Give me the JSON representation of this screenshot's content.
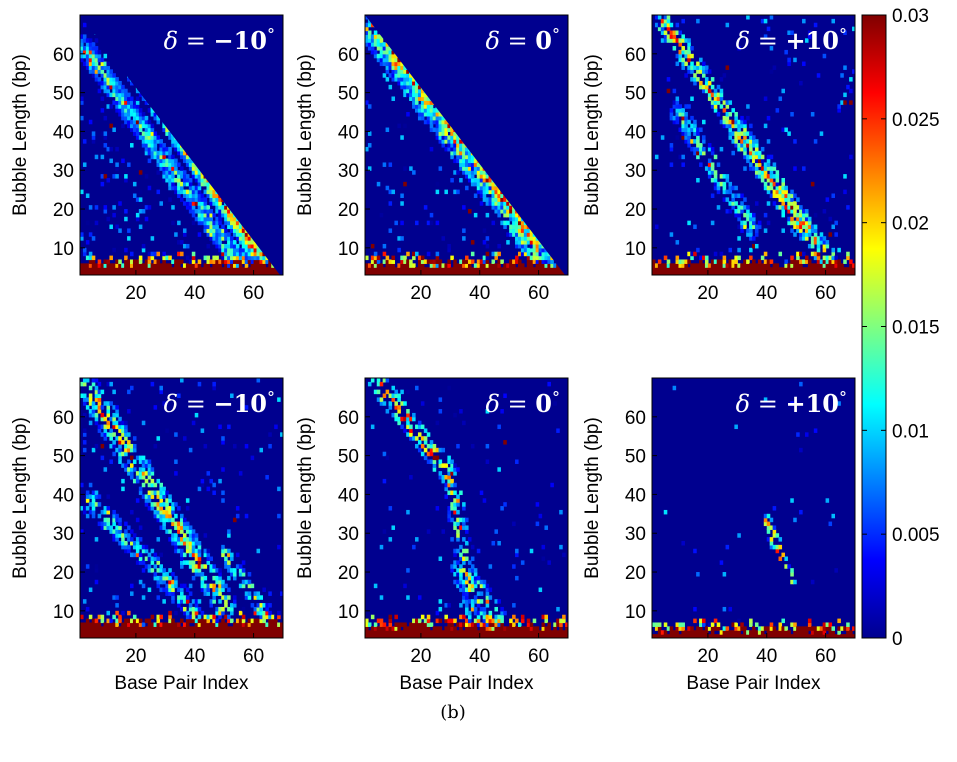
{
  "caption": "(b)",
  "colors": {
    "background": "#00008f",
    "max": "#800000"
  },
  "colorbar": {
    "ticks": [
      "0.03",
      "0.025",
      "0.02",
      "0.015",
      "0.01",
      "0.005",
      "0"
    ],
    "values": [
      0.03,
      0.025,
      0.02,
      0.015,
      0.01,
      0.005,
      0
    ],
    "range": [
      0,
      0.03
    ],
    "colormap": "jet"
  },
  "chart_data": [
    {
      "type": "heatmap",
      "row": 0,
      "col": 0,
      "title": {
        "prefix": "δ = ",
        "value": "−10",
        "degree": "°"
      },
      "ylabel": "Bubble Length (bp)",
      "xlabel": "",
      "xticks": [
        "20",
        "40",
        "60"
      ],
      "yticks": [
        "10",
        "20",
        "30",
        "40",
        "50",
        "60"
      ],
      "xlim": [
        1,
        70
      ],
      "ylim": [
        3,
        70
      ],
      "pattern": {
        "mask": "triangle",
        "bottom_band": 6,
        "bands": [
          {
            "x0": 2,
            "y0": 62,
            "x1": 55,
            "y1": 6,
            "w": 3,
            "v": 0.012
          },
          {
            "x0": 20,
            "y0": 55,
            "x1": 60,
            "y1": 10,
            "w": 3,
            "v": 0.015
          },
          {
            "x0": 35,
            "y0": 40,
            "x1": 62,
            "y1": 8,
            "w": 3,
            "v": 0.02
          }
        ],
        "noise": 0.55,
        "hot": 0.06
      }
    },
    {
      "type": "heatmap",
      "row": 0,
      "col": 1,
      "title": {
        "prefix": "δ = ",
        "value": "0",
        "degree": "°"
      },
      "ylabel": "Bubble Length (bp)",
      "xlabel": "",
      "xticks": [
        "20",
        "40",
        "60"
      ],
      "yticks": [
        "10",
        "20",
        "30",
        "40",
        "50",
        "60"
      ],
      "xlim": [
        1,
        70
      ],
      "ylim": [
        3,
        70
      ],
      "pattern": {
        "mask": "triangle",
        "bottom_band": 6,
        "bands": [
          {
            "x0": 3,
            "y0": 68,
            "x1": 60,
            "y1": 10,
            "w": 5,
            "v": 0.016
          },
          {
            "x0": 10,
            "y0": 60,
            "x1": 68,
            "y1": 6,
            "w": 4,
            "v": 0.012
          },
          {
            "x0": 30,
            "y0": 45,
            "x1": 55,
            "y1": 15,
            "w": 3,
            "v": 0.02
          }
        ],
        "noise": 0.4,
        "hot": 0.05
      }
    },
    {
      "type": "heatmap",
      "row": 0,
      "col": 2,
      "title": {
        "prefix": "δ = ",
        "value": "+10",
        "degree": "°"
      },
      "ylabel": "Bubble Length (bp)",
      "xlabel": "",
      "xticks": [
        "20",
        "40",
        "60"
      ],
      "yticks": [
        "10",
        "20",
        "30",
        "40",
        "50",
        "60"
      ],
      "xlim": [
        1,
        70
      ],
      "ylim": [
        3,
        70
      ],
      "pattern": {
        "mask": "none",
        "bottom_band": 6,
        "bands": [
          {
            "x0": 5,
            "y0": 68,
            "x1": 60,
            "y1": 8,
            "w": 3,
            "v": 0.018
          },
          {
            "x0": 10,
            "y0": 45,
            "x1": 35,
            "y1": 15,
            "w": 3,
            "v": 0.012
          },
          {
            "x0": 30,
            "y0": 40,
            "x1": 52,
            "y1": 15,
            "w": 3,
            "v": 0.02
          }
        ],
        "noise": 0.22,
        "hot": 0.05
      }
    },
    {
      "type": "heatmap",
      "row": 1,
      "col": 0,
      "title": {
        "prefix": "δ = ",
        "value": "−10",
        "degree": "°"
      },
      "ylabel": "Bubble Length (bp)",
      "xlabel": "Base Pair Index",
      "xticks": [
        "20",
        "40",
        "60"
      ],
      "yticks": [
        "10",
        "20",
        "30",
        "40",
        "50",
        "60"
      ],
      "xlim": [
        1,
        70
      ],
      "ylim": [
        3,
        70
      ],
      "pattern": {
        "mask": "none",
        "bottom_band": 7,
        "bands": [
          {
            "x0": 3,
            "y0": 68,
            "x1": 50,
            "y1": 12,
            "w": 4,
            "v": 0.016
          },
          {
            "x0": 5,
            "y0": 38,
            "x1": 40,
            "y1": 10,
            "w": 3,
            "v": 0.012
          },
          {
            "x0": 50,
            "y0": 25,
            "x1": 65,
            "y1": 8,
            "w": 2,
            "v": 0.015
          }
        ],
        "noise": 0.25,
        "hot": 0.05
      }
    },
    {
      "type": "heatmap",
      "row": 1,
      "col": 1,
      "title": {
        "prefix": "δ = ",
        "value": "0",
        "degree": "°"
      },
      "ylabel": "Bubble Length (bp)",
      "xlabel": "Base Pair Index",
      "xticks": [
        "20",
        "40",
        "60"
      ],
      "yticks": [
        "10",
        "20",
        "30",
        "40",
        "50",
        "60"
      ],
      "xlim": [
        1,
        70
      ],
      "ylim": [
        3,
        70
      ],
      "pattern": {
        "mask": "none",
        "bottom_band": 6,
        "bands": [
          {
            "x0": 5,
            "y0": 69,
            "x1": 30,
            "y1": 45,
            "w": 3,
            "v": 0.022
          },
          {
            "x0": 30,
            "y0": 45,
            "x1": 38,
            "y1": 8,
            "w": 3,
            "v": 0.014
          },
          {
            "x0": 34,
            "y0": 20,
            "x1": 45,
            "y1": 8,
            "w": 4,
            "v": 0.016
          }
        ],
        "noise": 0.12,
        "hot": 0.04
      }
    },
    {
      "type": "heatmap",
      "row": 1,
      "col": 2,
      "title": {
        "prefix": "δ = ",
        "value": "+10",
        "degree": "°"
      },
      "ylabel": "Bubble Length (bp)",
      "xlabel": "Base Pair Index",
      "xticks": [
        "20",
        "40",
        "60"
      ],
      "yticks": [
        "10",
        "20",
        "30",
        "40",
        "50",
        "60"
      ],
      "xlim": [
        1,
        70
      ],
      "ylim": [
        3,
        70
      ],
      "pattern": {
        "mask": "none",
        "bottom_band": 5,
        "bands": [
          {
            "x0": 40,
            "y0": 33,
            "x1": 48,
            "y1": 18,
            "w": 2,
            "v": 0.02
          }
        ],
        "noise": 0.05,
        "hot": 0.02
      }
    }
  ]
}
